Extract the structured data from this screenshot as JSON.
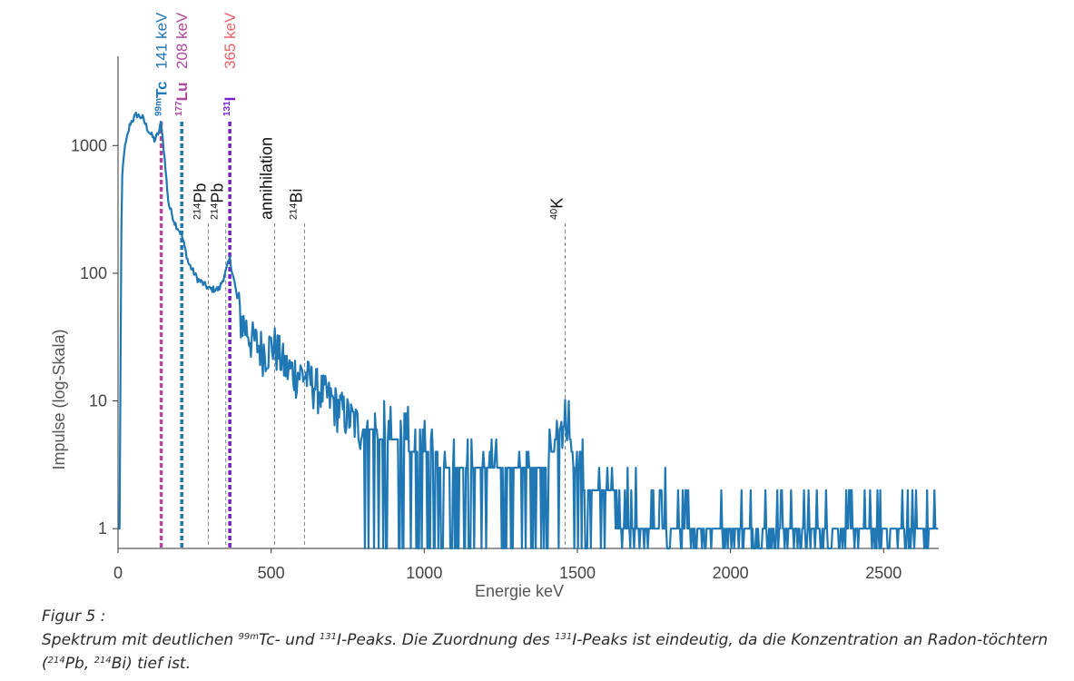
{
  "chart_data": {
    "type": "line",
    "xlabel": "Energie keV",
    "ylabel": "Impulse (log-Skala)",
    "yscale": "log",
    "xlim": [
      0,
      2680
    ],
    "ylim": [
      0.7,
      5000
    ],
    "xticks": [
      {
        "value": 0,
        "label": "0"
      },
      {
        "value": 500,
        "label": "500"
      },
      {
        "value": 1000,
        "label": "1000"
      },
      {
        "value": 1500,
        "label": "1500"
      },
      {
        "value": 2000,
        "label": "2000"
      },
      {
        "value": 2500,
        "label": "2500"
      }
    ],
    "yticks": [
      {
        "value": 1,
        "label": "1"
      },
      {
        "value": 10,
        "label": "10"
      },
      {
        "value": 100,
        "label": "100"
      },
      {
        "value": 1000,
        "label": "1000"
      }
    ],
    "series_color": "#1f77b4",
    "spectrum_envelope": [
      [
        5,
        1
      ],
      [
        12,
        500
      ],
      [
        20,
        900
      ],
      [
        40,
        1500
      ],
      [
        60,
        1750
      ],
      [
        80,
        1650
      ],
      [
        100,
        1300
      ],
      [
        120,
        1100
      ],
      [
        135,
        1300
      ],
      [
        141,
        1550
      ],
      [
        150,
        900
      ],
      [
        165,
        350
      ],
      [
        185,
        250
      ],
      [
        208,
        200
      ],
      [
        230,
        120
      ],
      [
        260,
        90
      ],
      [
        300,
        75
      ],
      [
        330,
        75
      ],
      [
        350,
        100
      ],
      [
        365,
        130
      ],
      [
        380,
        85
      ],
      [
        400,
        45
      ],
      [
        440,
        30
      ],
      [
        480,
        25
      ],
      [
        511,
        28
      ],
      [
        550,
        18
      ],
      [
        609,
        16
      ],
      [
        700,
        10
      ],
      [
        800,
        6
      ],
      [
        900,
        5
      ],
      [
        1000,
        4
      ],
      [
        1100,
        3
      ],
      [
        1200,
        2.5
      ],
      [
        1300,
        2.5
      ],
      [
        1400,
        3
      ],
      [
        1460,
        8
      ],
      [
        1490,
        3
      ],
      [
        1550,
        1.6
      ],
      [
        1700,
        1.4
      ],
      [
        2000,
        1.2
      ],
      [
        2300,
        1.1
      ],
      [
        2680,
        1.0
      ]
    ],
    "isotope_lines": [
      {
        "energy": 141,
        "label": "99mTc",
        "sup": "99m",
        "name": "Tc",
        "energy_label": "141 keV",
        "color": "#b0479b",
        "label_color": "#1f77b4",
        "energy_color": "#1f77b4"
      },
      {
        "energy": 208,
        "label": "177Lu",
        "sup": "177",
        "name": "Lu",
        "energy_label": "208 keV",
        "color": "#1f77b4",
        "label_color": "#b0479b",
        "energy_color": "#b0479b"
      },
      {
        "energy": 365,
        "label": "131I",
        "sup": "131",
        "name": "I",
        "energy_label": "365 keV",
        "color": "#7a1fcf",
        "label_color": "#7a1fcf",
        "energy_color": "#e8616b"
      }
    ],
    "background_lines": [
      {
        "energy": 295,
        "sup": "214",
        "name": "Pb",
        "label": "214Pb"
      },
      {
        "energy": 352,
        "sup": "214",
        "name": "Pb",
        "label": "214Pb"
      },
      {
        "energy": 511,
        "sup": "",
        "name": "annihilation",
        "label": "annihilation"
      },
      {
        "energy": 609,
        "sup": "214",
        "name": "Bi",
        "label": "214Bi"
      },
      {
        "energy": 1460,
        "sup": "40",
        "name": "K",
        "label": "40K"
      }
    ]
  },
  "caption": {
    "title": "Figur 5 :",
    "parts": [
      {
        "t": "Spektrum mit deutlichen "
      },
      {
        "t": "99m",
        "sup": true
      },
      {
        "t": "Tc- und "
      },
      {
        "t": "131",
        "sup": true
      },
      {
        "t": "I-Peaks. Die Zuordnung des "
      },
      {
        "t": "131",
        "sup": true
      },
      {
        "t": "I-Peaks ist eindeutig, da die Konzentration an Radon-töchtern ("
      },
      {
        "t": "214",
        "sup": true
      },
      {
        "t": "Pb, "
      },
      {
        "t": "214",
        "sup": true
      },
      {
        "t": "Bi) tief ist."
      }
    ]
  }
}
